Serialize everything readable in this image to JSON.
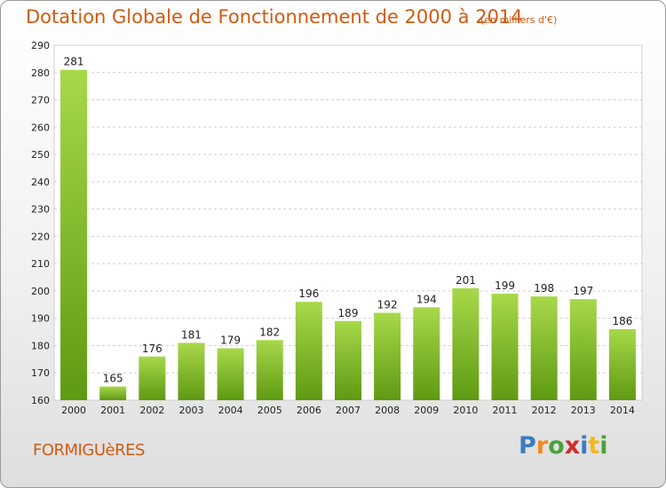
{
  "header": {
    "title": "Dotation Globale de Fonctionnement de 2000 à 2014",
    "unit": "(en milliers d'€)"
  },
  "footer": {
    "commune": "FORMIGUèRES",
    "logo": "Proxiti"
  },
  "colors": {
    "bar_light": "#a8d84a",
    "bar_dark": "#5e9a12",
    "title": "#d4590e"
  },
  "chart_data": {
    "type": "bar",
    "title": "Dotation Globale de Fonctionnement de 2000 à 2014",
    "subtitle": "(en milliers d'€)",
    "xlabel": "",
    "ylabel": "",
    "categories": [
      "2000",
      "2001",
      "2002",
      "2003",
      "2004",
      "2005",
      "2006",
      "2007",
      "2008",
      "2009",
      "2010",
      "2011",
      "2012",
      "2013",
      "2014"
    ],
    "values": [
      281,
      165,
      176,
      181,
      179,
      182,
      196,
      189,
      192,
      194,
      201,
      199,
      198,
      197,
      186
    ],
    "ylim": [
      160,
      290
    ],
    "yticks": [
      160,
      170,
      180,
      190,
      200,
      210,
      220,
      230,
      240,
      250,
      260,
      270,
      280,
      290
    ],
    "grid": "horizontal dashed",
    "legend": "none",
    "data_labels": true
  }
}
